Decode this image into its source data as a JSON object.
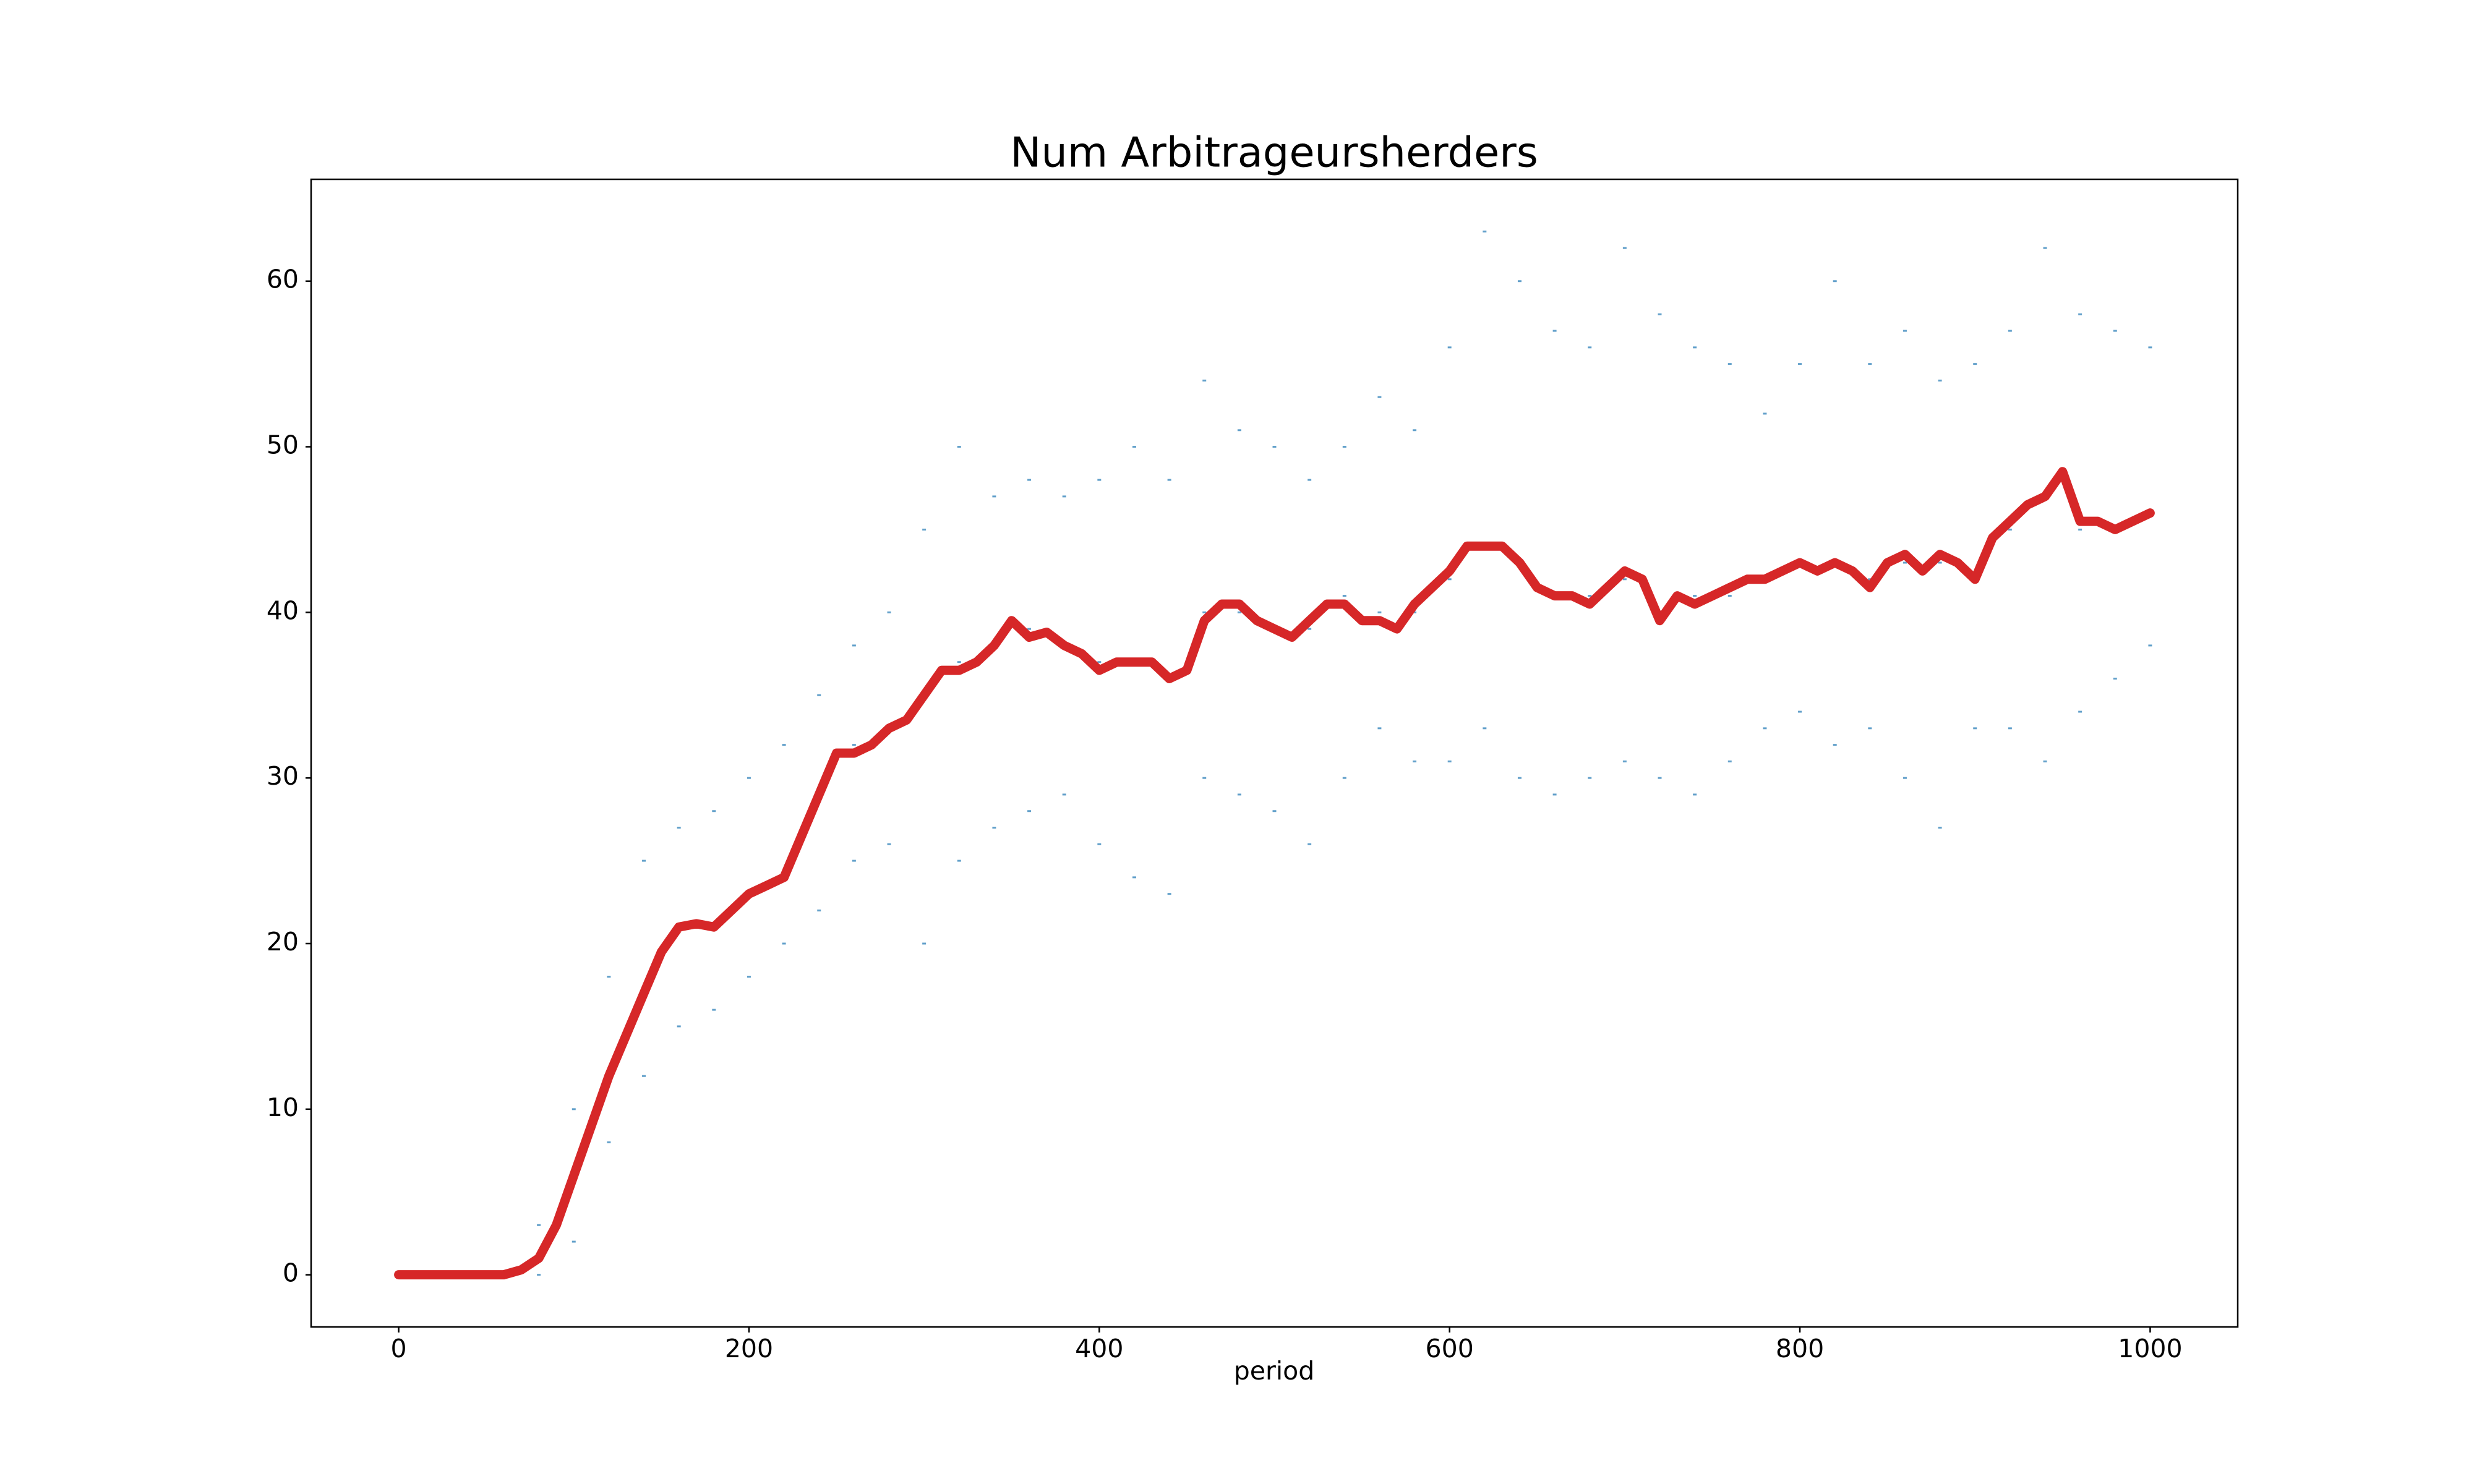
{
  "chart_data": {
    "type": "line",
    "title": "Num Arbitrageursherders",
    "x_label": "period",
    "xlim": [
      -50,
      1050
    ],
    "ylim": [
      -3.15,
      66.15
    ],
    "xticks": [
      0,
      200,
      400,
      600,
      800,
      1000
    ],
    "yticks": [
      0,
      10,
      20,
      30,
      40,
      50,
      60
    ],
    "grid": false,
    "series": [
      {
        "type": "scatter",
        "color": "#1f77b4",
        "x": [
          80,
          80,
          80,
          100,
          100,
          100,
          120,
          120,
          120,
          140,
          140,
          140,
          160,
          160,
          160,
          180,
          180,
          180,
          200,
          200,
          200,
          220,
          220,
          220,
          240,
          240,
          240,
          260,
          260,
          260,
          280,
          280,
          280,
          300,
          300,
          300,
          320,
          320,
          320,
          340,
          340,
          340,
          360,
          360,
          360,
          380,
          380,
          380,
          400,
          400,
          400,
          420,
          420,
          420,
          440,
          440,
          440,
          460,
          460,
          460,
          480,
          480,
          480,
          500,
          500,
          500,
          520,
          520,
          520,
          540,
          540,
          540,
          560,
          560,
          560,
          580,
          580,
          580,
          600,
          600,
          600,
          620,
          620,
          620,
          640,
          640,
          640,
          660,
          660,
          660,
          680,
          680,
          680,
          700,
          700,
          700,
          720,
          720,
          720,
          740,
          740,
          740,
          760,
          760,
          760,
          780,
          780,
          780,
          800,
          800,
          800,
          820,
          820,
          820,
          840,
          840,
          840,
          860,
          860,
          860,
          880,
          880,
          880,
          900,
          900,
          900,
          920,
          920,
          920,
          940,
          940,
          940,
          960,
          960,
          960,
          980,
          980,
          980,
          1000,
          1000,
          1000
        ],
        "values": [
          0,
          1,
          3,
          2,
          6,
          10,
          8,
          12,
          18,
          12,
          17,
          25,
          15,
          21,
          27,
          16,
          21,
          28,
          18,
          23,
          30,
          20,
          24,
          32,
          22,
          29,
          35,
          25,
          32,
          38,
          26,
          33,
          40,
          20,
          35,
          45,
          25,
          37,
          50,
          27,
          38,
          47,
          28,
          39,
          48,
          29,
          38,
          47,
          26,
          37,
          48,
          24,
          37,
          50,
          23,
          36,
          48,
          30,
          40,
          54,
          29,
          40,
          51,
          28,
          39,
          50,
          26,
          39,
          48,
          30,
          41,
          50,
          33,
          40,
          53,
          31,
          40,
          51,
          31,
          42,
          56,
          33,
          44,
          63,
          30,
          43,
          60,
          29,
          41,
          57,
          30,
          41,
          56,
          31,
          42,
          62,
          30,
          40,
          58,
          29,
          41,
          56,
          31,
          41,
          55,
          33,
          42,
          52,
          34,
          43,
          55,
          32,
          43,
          60,
          33,
          42,
          55,
          30,
          43,
          57,
          27,
          43,
          54,
          33,
          42,
          55,
          33,
          45,
          57,
          31,
          47,
          62,
          34,
          45,
          58,
          36,
          45,
          57,
          38,
          46,
          56
        ]
      },
      {
        "type": "line",
        "color": "#d62728",
        "x": [
          0,
          10,
          20,
          30,
          40,
          50,
          60,
          70,
          80,
          90,
          100,
          110,
          120,
          130,
          140,
          150,
          160,
          170,
          180,
          190,
          200,
          210,
          220,
          230,
          240,
          250,
          260,
          270,
          280,
          290,
          300,
          310,
          320,
          330,
          340,
          350,
          360,
          370,
          380,
          390,
          400,
          410,
          420,
          430,
          440,
          450,
          460,
          470,
          480,
          490,
          500,
          510,
          520,
          530,
          540,
          550,
          560,
          570,
          580,
          590,
          600,
          610,
          620,
          630,
          640,
          650,
          660,
          670,
          680,
          690,
          700,
          710,
          720,
          730,
          740,
          750,
          760,
          770,
          780,
          790,
          800,
          810,
          820,
          830,
          840,
          850,
          860,
          870,
          880,
          890,
          900,
          910,
          920,
          930,
          940,
          950,
          960,
          970,
          980,
          990,
          1000
        ],
        "values": [
          0,
          0,
          0,
          0,
          0,
          0,
          0,
          0.3,
          1,
          3,
          6,
          9,
          12,
          14.5,
          17,
          19.5,
          21,
          21.2,
          21,
          22,
          23,
          23.5,
          24,
          26.5,
          29,
          31.5,
          31.5,
          32,
          33,
          33.5,
          35,
          36.5,
          36.5,
          37,
          38,
          39.5,
          38.5,
          38.8,
          38,
          37.5,
          36.5,
          37,
          37,
          37,
          36,
          36.5,
          39.5,
          40.5,
          40.5,
          39.5,
          39,
          38.5,
          39.5,
          40.5,
          40.5,
          39.5,
          39.5,
          39,
          40.5,
          41.5,
          42.5,
          44,
          44,
          44,
          43,
          41.5,
          41,
          41,
          40.5,
          41.5,
          42.5,
          42,
          39.5,
          41,
          40.5,
          41,
          41.5,
          42,
          42,
          42.5,
          43,
          42.5,
          43,
          42.5,
          41.5,
          43,
          43.5,
          42.5,
          43.5,
          43,
          42,
          44.5,
          45.5,
          46.5,
          47,
          48.5,
          45.5,
          45.5,
          45,
          45.5,
          46
        ]
      }
    ]
  }
}
